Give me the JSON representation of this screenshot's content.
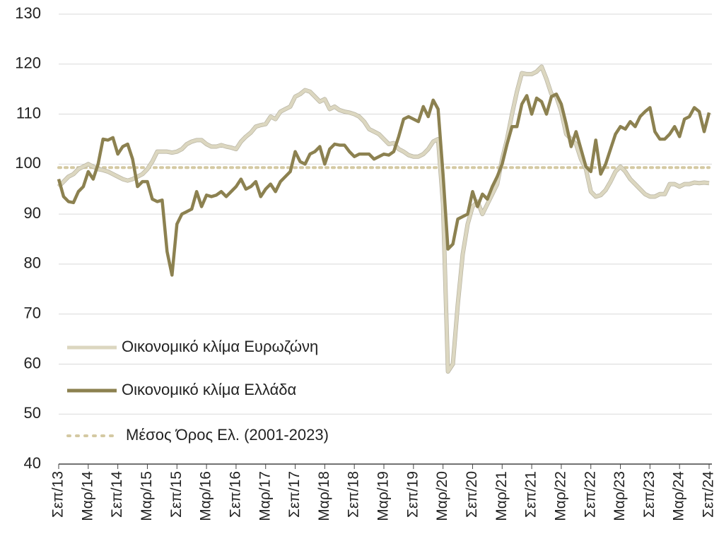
{
  "chart_data": {
    "type": "line",
    "categories": [
      "Σεπ/13",
      null,
      null,
      null,
      null,
      null,
      "Μαρ/14",
      null,
      null,
      null,
      null,
      null,
      "Σεπ/14",
      null,
      null,
      null,
      null,
      null,
      "Μαρ/15",
      null,
      null,
      null,
      null,
      null,
      "Σεπ/15",
      null,
      null,
      null,
      null,
      null,
      "Μαρ/16",
      null,
      null,
      null,
      null,
      null,
      "Σεπ/16",
      null,
      null,
      null,
      null,
      null,
      "Μαρ/17",
      null,
      null,
      null,
      null,
      null,
      "Σεπ/17",
      null,
      null,
      null,
      null,
      null,
      "Μαρ/18",
      null,
      null,
      null,
      null,
      null,
      "Σεπ/18",
      null,
      null,
      null,
      null,
      null,
      "Μαρ/19",
      null,
      null,
      null,
      null,
      null,
      "Σεπ/19",
      null,
      null,
      null,
      null,
      null,
      "Μαρ/20",
      null,
      null,
      null,
      null,
      null,
      "Σεπ/20",
      null,
      null,
      null,
      null,
      null,
      "Μαρ/21",
      null,
      null,
      null,
      null,
      null,
      "Σεπ/21",
      null,
      null,
      null,
      null,
      null,
      "Μαρ/22",
      null,
      null,
      null,
      null,
      null,
      "Σεπ/22",
      null,
      null,
      null,
      null,
      null,
      "Μαρ/23",
      null,
      null,
      null,
      null,
      null,
      "Σεπ/23",
      null,
      null,
      null,
      null,
      null,
      "Μαρ/24",
      null,
      null,
      null,
      null,
      null,
      "Σεπ/24"
    ],
    "series": [
      {
        "name": "Οικονομικό κλίμα Ευρωζώνη",
        "color": "#dcd7c0",
        "values": [
          95.5,
          96.5,
          97.5,
          98,
          99,
          99.5,
          100,
          99.5,
          99,
          98.8,
          98.5,
          98,
          97.5,
          97,
          96.7,
          97,
          97.5,
          98,
          99,
          100.5,
          102.5,
          102.5,
          102.5,
          102.3,
          102.5,
          103,
          104,
          104.5,
          104.8,
          104.8,
          104,
          103.5,
          103.5,
          103.8,
          103.5,
          103.3,
          103,
          104.5,
          105.5,
          106.3,
          107.5,
          107.8,
          108,
          109.5,
          109,
          110.5,
          111,
          111.5,
          113.5,
          114,
          114.8,
          114.5,
          113.5,
          112.5,
          113,
          111,
          111.5,
          110.8,
          110.5,
          110.3,
          110,
          109.5,
          108.5,
          107,
          106.5,
          106,
          105,
          104,
          104.2,
          103,
          102.5,
          101.8,
          101.5,
          101.5,
          102,
          103,
          104.5,
          105,
          92,
          58.5,
          60,
          72,
          82,
          88,
          91.5,
          92.5,
          90,
          92,
          94,
          96,
          101,
          105,
          110,
          114.5,
          118.2,
          118,
          118,
          118.5,
          119.5,
          117,
          114,
          113.5,
          110.5,
          106,
          105,
          104,
          101,
          99,
          94.5,
          93.5,
          93.8,
          94.8,
          96.5,
          98.5,
          99.5,
          98.5,
          97,
          96,
          95,
          94,
          93.5,
          93.5,
          94,
          94,
          96,
          96,
          95.5,
          96,
          96,
          96.3,
          96.2,
          96.3,
          96.2
        ]
      },
      {
        "name": "Οικονομικό κλίμα Ελλάδα",
        "color": "#8c8150",
        "values": [
          97,
          93.5,
          92.5,
          92.3,
          94.5,
          95.5,
          98.5,
          97,
          100,
          105,
          104.8,
          105.3,
          102,
          103.5,
          104,
          101,
          95.5,
          96.5,
          96.5,
          93,
          92.5,
          92.8,
          82.5,
          77.8,
          88,
          90,
          90.5,
          91,
          94.5,
          91.5,
          93.8,
          93.5,
          93.8,
          94.5,
          93.5,
          94.5,
          95.5,
          97,
          95,
          95.5,
          96.5,
          93.5,
          95,
          96,
          94.5,
          96.5,
          97.5,
          98.5,
          102.5,
          100.5,
          100,
          102,
          102.5,
          103.5,
          100,
          103,
          104,
          103.8,
          103.8,
          102.5,
          101.5,
          102,
          102,
          102,
          101,
          101.5,
          102,
          101.8,
          102.5,
          105.5,
          109,
          109.5,
          109,
          108.5,
          111.5,
          109.5,
          112.8,
          111,
          98,
          83,
          84,
          89,
          89.5,
          90,
          94.5,
          91.5,
          94,
          93,
          95.5,
          97.5,
          100,
          104,
          107.5,
          107.5,
          112,
          113.7,
          110,
          113.2,
          112.5,
          110,
          113.5,
          114,
          112,
          108,
          103.5,
          106.5,
          103,
          99.5,
          98.5,
          104.8,
          98,
          100,
          103,
          106,
          107.5,
          107,
          108.5,
          107.5,
          109.5,
          110.5,
          111.3,
          106.5,
          105,
          105,
          106,
          107.5,
          105.5,
          109,
          109.5,
          111.3,
          110.5,
          106.5,
          110.3
        ]
      }
    ],
    "hline": {
      "name": "Μέσος Όρος Ελ. (2001-2023)",
      "value": 99.3,
      "color": "#d4c9a2",
      "style": "dotted"
    },
    "ylim": [
      40,
      130
    ],
    "yticks": [
      40,
      50,
      60,
      70,
      80,
      90,
      100,
      110,
      120,
      130
    ],
    "grid": true
  }
}
